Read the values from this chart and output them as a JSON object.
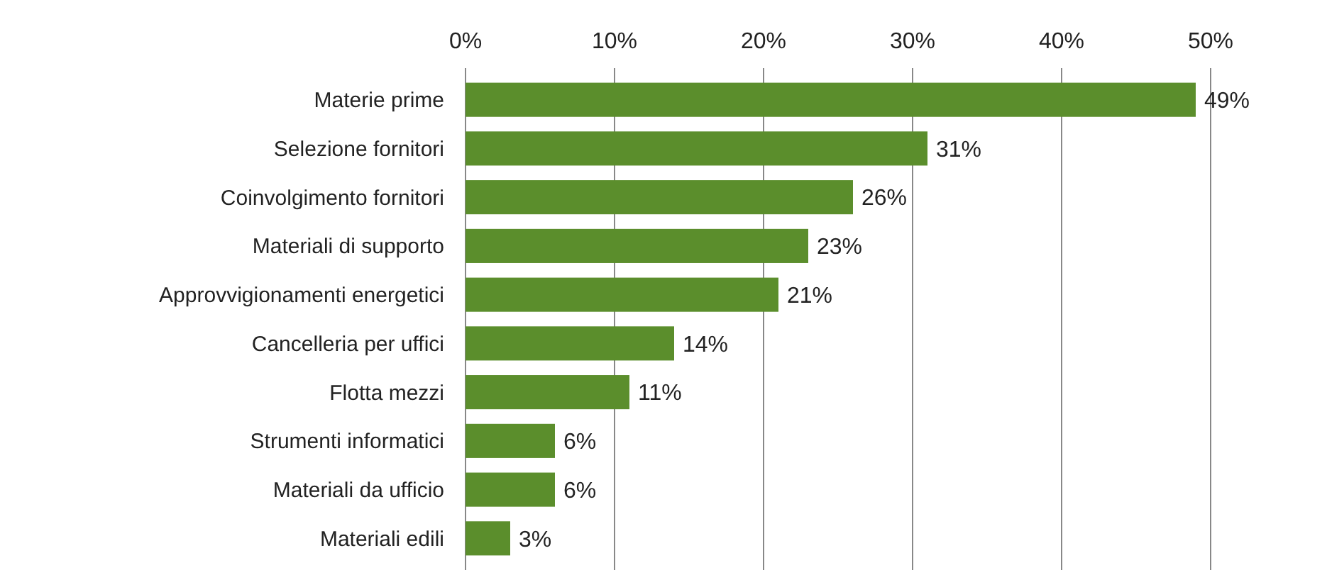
{
  "chart_data": {
    "type": "bar",
    "orientation": "horizontal",
    "categories": [
      "Materie prime",
      "Selezione fornitori",
      "Coinvolgimento fornitori",
      "Materiali di supporto",
      "Approvvigionamenti energetici",
      "Cancelleria per uffici",
      "Flotta mezzi",
      "Strumenti informatici",
      "Materiali da ufficio",
      "Materiali edili"
    ],
    "values": [
      49,
      31,
      26,
      23,
      21,
      14,
      11,
      6,
      6,
      3
    ],
    "value_labels": [
      "49%",
      "31%",
      "26%",
      "23%",
      "21%",
      "14%",
      "11%",
      "6%",
      "6%",
      "3%"
    ],
    "color": "#5b8e2c",
    "xlim": [
      0,
      50
    ],
    "xticks": [
      {
        "value": 0,
        "label": "0%"
      },
      {
        "value": 10,
        "label": "10%"
      },
      {
        "value": 20,
        "label": "20%"
      },
      {
        "value": 30,
        "label": "30%"
      },
      {
        "value": 40,
        "label": "40%"
      },
      {
        "value": 50,
        "label": "50%"
      }
    ],
    "grid": "x"
  }
}
